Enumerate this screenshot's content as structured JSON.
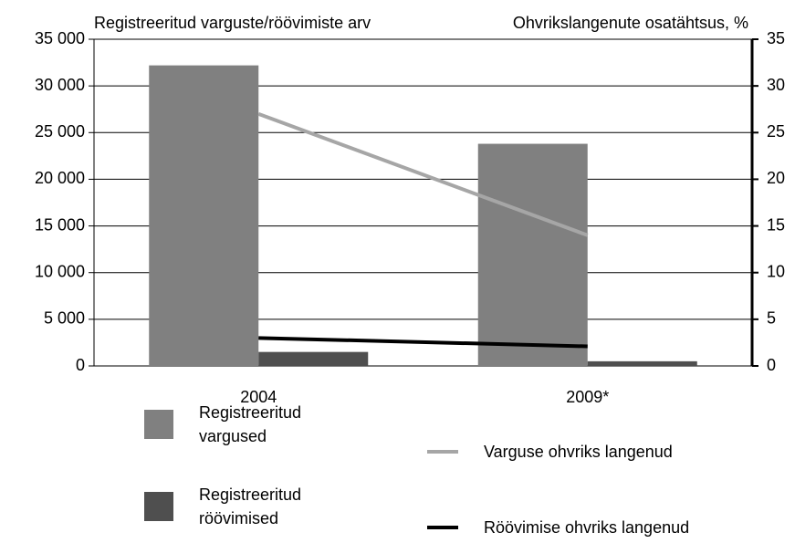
{
  "chart_data": {
    "type": "bar",
    "y_label": "Registreeritud varguste/röövimiste arv",
    "y2_label": "Ohvrikslangenute osatähtsus, %",
    "categories": [
      "2004",
      "2009*"
    ],
    "series": [
      {
        "name": "Registreeritud vargused",
        "type": "bar",
        "color": "#808080",
        "values": [
          32200,
          23800
        ]
      },
      {
        "name": "Registreeritud röövimised",
        "type": "bar",
        "color": "#4f4f4f",
        "values": [
          1500,
          500
        ]
      },
      {
        "name": "Varguse ohvriks langenud",
        "type": "line",
        "axis": "y2",
        "color": "#a6a6a6",
        "values": [
          27,
          14
        ]
      },
      {
        "name": "Röövimise ohvriks langenud",
        "type": "line",
        "axis": "y2",
        "color": "#000000",
        "values": [
          3,
          2.1
        ]
      }
    ],
    "ylim": [
      0,
      35000
    ],
    "yticks": [
      0,
      {
        "value": 5000,
        "label": "5 000"
      },
      {
        "value": 10000,
        "label": "10 000"
      },
      {
        "value": 15000,
        "label": "15 000"
      },
      {
        "value": 20000,
        "label": "20 000"
      },
      {
        "value": 25000,
        "label": "25 000"
      },
      {
        "value": 30000,
        "label": "30 000"
      },
      {
        "value": 35000,
        "label": "35 000"
      }
    ],
    "y2lim": [
      0,
      35
    ],
    "y2ticks": [
      0,
      5,
      10,
      15,
      20,
      25,
      30,
      35
    ],
    "grid": true
  }
}
